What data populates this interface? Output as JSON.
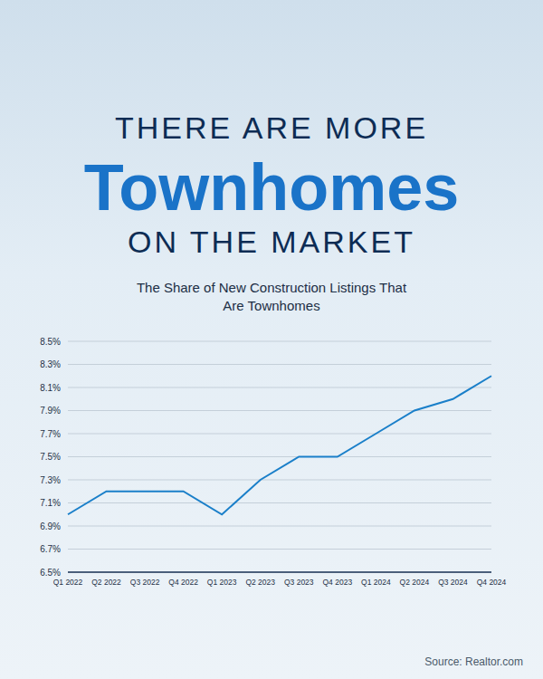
{
  "chart_data": {
    "type": "line",
    "title": [
      "THERE ARE MORE",
      "Townhomes",
      "ON THE MARKET"
    ],
    "subtitle": "The Share of New Construction Listings That Are Townhomes",
    "source": "Source: Realtor.com",
    "categories": [
      "Q1 2022",
      "Q2 2022",
      "Q3 2022",
      "Q4 2022",
      "Q1 2023",
      "Q2 2023",
      "Q3 2023",
      "Q4 2023",
      "Q1 2024",
      "Q2 2024",
      "Q3 2024",
      "Q4 2024"
    ],
    "values": [
      7.0,
      7.2,
      7.2,
      7.2,
      7.0,
      7.3,
      7.5,
      7.5,
      7.7,
      7.9,
      8.0,
      8.2
    ],
    "color": "#1a7fc9",
    "ylim": [
      6.5,
      8.5
    ],
    "yticks": [
      {
        "value": 6.5,
        "label": "6.5%"
      },
      {
        "value": 6.7,
        "label": "6.7%"
      },
      {
        "value": 6.9,
        "label": "6.9%"
      },
      {
        "value": 7.1,
        "label": "7.1%"
      },
      {
        "value": 7.3,
        "label": "7.3%"
      },
      {
        "value": 7.5,
        "label": "7.5%"
      },
      {
        "value": 7.7,
        "label": "7.7%"
      },
      {
        "value": 7.9,
        "label": "7.9%"
      },
      {
        "value": 8.1,
        "label": "8.1%"
      },
      {
        "value": 8.3,
        "label": "8.3%"
      },
      {
        "value": 8.5,
        "label": "8.5%"
      }
    ],
    "grid": true
  }
}
